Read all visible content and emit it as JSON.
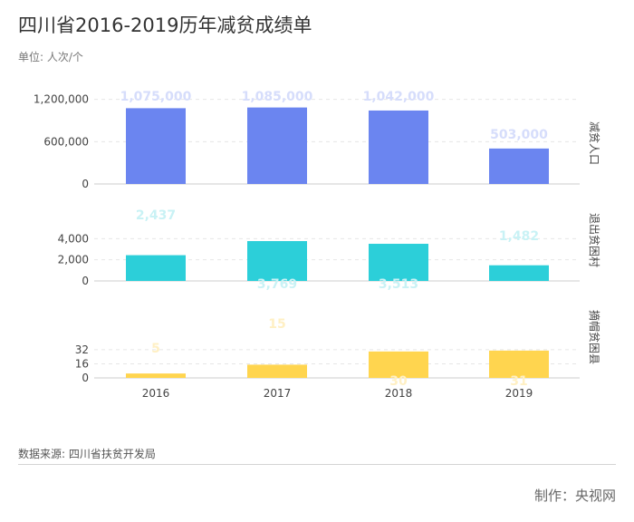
{
  "title": "四川省2016-2019历年减贫成绩单",
  "subtitle": "单位: 人次/个",
  "source": "数据来源: 四川省扶贫开发局",
  "credit": "制作：央视网",
  "colors": {
    "series1": "#6b85f0",
    "series2": "#2ccfd9",
    "series3": "#ffd54f",
    "label1": "#d6ddfb",
    "label2": "#c9f2f5",
    "label3": "#fff0c4",
    "grid": "#e6e6e6",
    "axis": "#cccccc"
  },
  "chart_data": {
    "type": "bar",
    "categories": [
      "2016",
      "2017",
      "2018",
      "2019"
    ],
    "panels": [
      {
        "name": "减贫人口",
        "values": [
          1075000,
          1085000,
          1042000,
          503000
        ],
        "value_labels": [
          "1,075,000",
          "1,085,000",
          "1,042,000",
          "503,000"
        ],
        "ylim": [
          0,
          1800000
        ],
        "ticks": [
          0,
          600000,
          1200000
        ],
        "tick_labels": [
          "0",
          "600,000",
          "1,200,000"
        ]
      },
      {
        "name": "退出贫困村",
        "values": [
          2437,
          3769,
          3513,
          1482
        ],
        "value_labels": [
          "2,437",
          "3,769",
          "3,513",
          "1,482"
        ],
        "ylim": [
          0,
          12000
        ],
        "ticks": [
          0,
          2000,
          4000
        ],
        "tick_labels": [
          "0",
          "2,000",
          "4,000"
        ]
      },
      {
        "name": "摘帽贫困县",
        "values": [
          5,
          15,
          30,
          31
        ],
        "value_labels": [
          "5",
          "15",
          "30",
          "31"
        ],
        "ylim": [
          0,
          144
        ],
        "ticks": [
          0,
          16,
          32
        ],
        "tick_labels": [
          "0",
          "16",
          "32"
        ]
      }
    ]
  }
}
